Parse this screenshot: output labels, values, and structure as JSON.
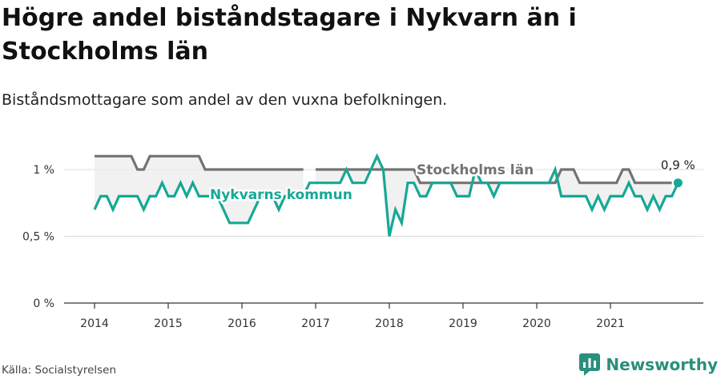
{
  "title": "Högre andel biståndstagare i Nykvarn än i Stockholms län",
  "subtitle": "Biståndsmottagare som andel av den vuxna befolkningen.",
  "source": "Källa: Socialstyrelsen",
  "brand": {
    "name": "Newsworthy",
    "icon": "bar-chart-logo-icon"
  },
  "colors": {
    "nykvarn": "#16a896",
    "stockholm": "#737373",
    "fill": "#ececec",
    "grid": "#dcdcdc",
    "axis": "#333333"
  },
  "chart_data": {
    "type": "line",
    "xlim": [
      2014,
      2022
    ],
    "ylim": [
      0,
      1.1
    ],
    "y_ticks": [
      {
        "value": 0,
        "label": "0 %"
      },
      {
        "value": 0.5,
        "label": "0,5 %"
      },
      {
        "value": 1,
        "label": "1 %"
      }
    ],
    "x_ticks": [
      {
        "value": 2014,
        "label": "2014"
      },
      {
        "value": 2015,
        "label": "2015"
      },
      {
        "value": 2016,
        "label": "2016"
      },
      {
        "value": 2017,
        "label": "2017"
      },
      {
        "value": 2018,
        "label": "2018"
      },
      {
        "value": 2019,
        "label": "2019"
      },
      {
        "value": 2020,
        "label": "2020"
      },
      {
        "value": 2021,
        "label": "2021"
      }
    ],
    "grid": true,
    "end_label": "0,9 %",
    "series": [
      {
        "name": "Stockholms län",
        "points": [
          [
            2014.0,
            1.1
          ],
          [
            2014.083,
            1.1
          ],
          [
            2014.167,
            1.1
          ],
          [
            2014.25,
            1.1
          ],
          [
            2014.333,
            1.1
          ],
          [
            2014.417,
            1.1
          ],
          [
            2014.5,
            1.1
          ],
          [
            2014.583,
            1.0
          ],
          [
            2014.667,
            1.0
          ],
          [
            2014.75,
            1.1
          ],
          [
            2014.833,
            1.1
          ],
          [
            2014.917,
            1.1
          ],
          [
            2015.0,
            1.1
          ],
          [
            2015.083,
            1.1
          ],
          [
            2015.167,
            1.1
          ],
          [
            2015.25,
            1.1
          ],
          [
            2015.333,
            1.1
          ],
          [
            2015.417,
            1.1
          ],
          [
            2015.5,
            1.0
          ],
          [
            2015.583,
            1.0
          ],
          [
            2015.667,
            1.0
          ],
          [
            2015.75,
            1.0
          ],
          [
            2015.833,
            1.0
          ],
          [
            2015.917,
            1.0
          ],
          [
            2016.0,
            1.0
          ],
          [
            2016.083,
            1.0
          ],
          [
            2016.167,
            1.0
          ],
          [
            2016.25,
            1.0
          ],
          [
            2016.333,
            1.0
          ],
          [
            2016.417,
            1.0
          ],
          [
            2016.5,
            1.0
          ],
          [
            2016.583,
            1.0
          ],
          [
            2016.667,
            1.0
          ],
          [
            2016.75,
            1.0
          ],
          [
            2016.833,
            1.0
          ],
          [
            2016.917,
            null
          ],
          [
            2017.0,
            1.0
          ],
          [
            2017.083,
            1.0
          ],
          [
            2017.167,
            1.0
          ],
          [
            2017.25,
            1.0
          ],
          [
            2017.333,
            1.0
          ],
          [
            2017.417,
            1.0
          ],
          [
            2017.5,
            1.0
          ],
          [
            2017.583,
            1.0
          ],
          [
            2017.667,
            1.0
          ],
          [
            2017.75,
            1.0
          ],
          [
            2017.833,
            1.0
          ],
          [
            2017.917,
            1.0
          ],
          [
            2018.0,
            1.0
          ],
          [
            2018.083,
            1.0
          ],
          [
            2018.167,
            1.0
          ],
          [
            2018.25,
            1.0
          ],
          [
            2018.333,
            1.0
          ],
          [
            2018.417,
            0.9
          ],
          [
            2018.5,
            0.9
          ],
          [
            2018.583,
            0.9
          ],
          [
            2018.667,
            0.9
          ],
          [
            2018.75,
            0.9
          ],
          [
            2018.833,
            0.9
          ],
          [
            2018.917,
            0.9
          ],
          [
            2019.0,
            0.9
          ],
          [
            2019.083,
            0.9
          ],
          [
            2019.167,
            0.9
          ],
          [
            2019.25,
            0.9
          ],
          [
            2019.333,
            0.9
          ],
          [
            2019.417,
            0.9
          ],
          [
            2019.5,
            0.9
          ],
          [
            2019.583,
            0.9
          ],
          [
            2019.667,
            0.9
          ],
          [
            2019.75,
            0.9
          ],
          [
            2019.833,
            0.9
          ],
          [
            2019.917,
            0.9
          ],
          [
            2020.0,
            0.9
          ],
          [
            2020.083,
            0.9
          ],
          [
            2020.167,
            0.9
          ],
          [
            2020.25,
            0.9
          ],
          [
            2020.333,
            1.0
          ],
          [
            2020.417,
            1.0
          ],
          [
            2020.5,
            1.0
          ],
          [
            2020.583,
            0.9
          ],
          [
            2020.667,
            0.9
          ],
          [
            2020.75,
            0.9
          ],
          [
            2020.833,
            0.9
          ],
          [
            2020.917,
            0.9
          ],
          [
            2021.0,
            0.9
          ],
          [
            2021.083,
            0.9
          ],
          [
            2021.167,
            1.0
          ],
          [
            2021.25,
            1.0
          ],
          [
            2021.333,
            0.9
          ],
          [
            2021.417,
            0.9
          ],
          [
            2021.5,
            0.9
          ],
          [
            2021.583,
            0.9
          ],
          [
            2021.667,
            0.9
          ],
          [
            2021.75,
            0.9
          ],
          [
            2021.833,
            0.9
          ]
        ]
      },
      {
        "name": "Nykvarns kommun",
        "points": [
          [
            2014.0,
            0.7
          ],
          [
            2014.083,
            0.8
          ],
          [
            2014.167,
            0.8
          ],
          [
            2014.25,
            0.7
          ],
          [
            2014.333,
            0.8
          ],
          [
            2014.417,
            0.8
          ],
          [
            2014.5,
            0.8
          ],
          [
            2014.583,
            0.8
          ],
          [
            2014.667,
            0.7
          ],
          [
            2014.75,
            0.8
          ],
          [
            2014.833,
            0.8
          ],
          [
            2014.917,
            0.9
          ],
          [
            2015.0,
            0.8
          ],
          [
            2015.083,
            0.8
          ],
          [
            2015.167,
            0.9
          ],
          [
            2015.25,
            0.8
          ],
          [
            2015.333,
            0.9
          ],
          [
            2015.417,
            0.8
          ],
          [
            2015.5,
            0.8
          ],
          [
            2015.583,
            0.8
          ],
          [
            2015.667,
            0.8
          ],
          [
            2015.75,
            0.7
          ],
          [
            2015.833,
            0.6
          ],
          [
            2015.917,
            0.6
          ],
          [
            2016.0,
            0.6
          ],
          [
            2016.083,
            0.6
          ],
          [
            2016.167,
            0.7
          ],
          [
            2016.25,
            0.8
          ],
          [
            2016.333,
            0.8
          ],
          [
            2016.417,
            0.8
          ],
          [
            2016.5,
            0.7
          ],
          [
            2016.583,
            0.8
          ],
          [
            2016.667,
            0.8
          ],
          [
            2016.75,
            0.8
          ],
          [
            2016.833,
            0.8
          ],
          [
            2016.917,
            0.9
          ],
          [
            2017.0,
            0.9
          ],
          [
            2017.083,
            0.9
          ],
          [
            2017.167,
            0.9
          ],
          [
            2017.25,
            0.9
          ],
          [
            2017.333,
            0.9
          ],
          [
            2017.417,
            1.0
          ],
          [
            2017.5,
            0.9
          ],
          [
            2017.583,
            0.9
          ],
          [
            2017.667,
            0.9
          ],
          [
            2017.75,
            1.0
          ],
          [
            2017.833,
            1.1
          ],
          [
            2017.917,
            1.0
          ],
          [
            2018.0,
            0.5
          ],
          [
            2018.083,
            0.7
          ],
          [
            2018.167,
            0.6
          ],
          [
            2018.25,
            0.9
          ],
          [
            2018.333,
            0.9
          ],
          [
            2018.417,
            0.8
          ],
          [
            2018.5,
            0.8
          ],
          [
            2018.583,
            0.9
          ],
          [
            2018.667,
            0.9
          ],
          [
            2018.75,
            0.9
          ],
          [
            2018.833,
            0.9
          ],
          [
            2018.917,
            0.8
          ],
          [
            2019.0,
            0.8
          ],
          [
            2019.083,
            0.8
          ],
          [
            2019.167,
            1.0
          ],
          [
            2019.25,
            0.9
          ],
          [
            2019.333,
            0.9
          ],
          [
            2019.417,
            0.8
          ],
          [
            2019.5,
            0.9
          ],
          [
            2019.583,
            0.9
          ],
          [
            2019.667,
            0.9
          ],
          [
            2019.75,
            0.9
          ],
          [
            2019.833,
            0.9
          ],
          [
            2019.917,
            0.9
          ],
          [
            2020.0,
            0.9
          ],
          [
            2020.083,
            0.9
          ],
          [
            2020.167,
            0.9
          ],
          [
            2020.25,
            1.0
          ],
          [
            2020.333,
            0.8
          ],
          [
            2020.417,
            0.8
          ],
          [
            2020.5,
            0.8
          ],
          [
            2020.583,
            0.8
          ],
          [
            2020.667,
            0.8
          ],
          [
            2020.75,
            0.7
          ],
          [
            2020.833,
            0.8
          ],
          [
            2020.917,
            0.7
          ],
          [
            2021.0,
            0.8
          ],
          [
            2021.083,
            0.8
          ],
          [
            2021.167,
            0.8
          ],
          [
            2021.25,
            0.9
          ],
          [
            2021.333,
            0.8
          ],
          [
            2021.417,
            0.8
          ],
          [
            2021.5,
            0.7
          ],
          [
            2021.583,
            0.8
          ],
          [
            2021.667,
            0.7
          ],
          [
            2021.75,
            0.8
          ],
          [
            2021.833,
            0.8
          ],
          [
            2021.917,
            0.9
          ]
        ]
      }
    ]
  }
}
